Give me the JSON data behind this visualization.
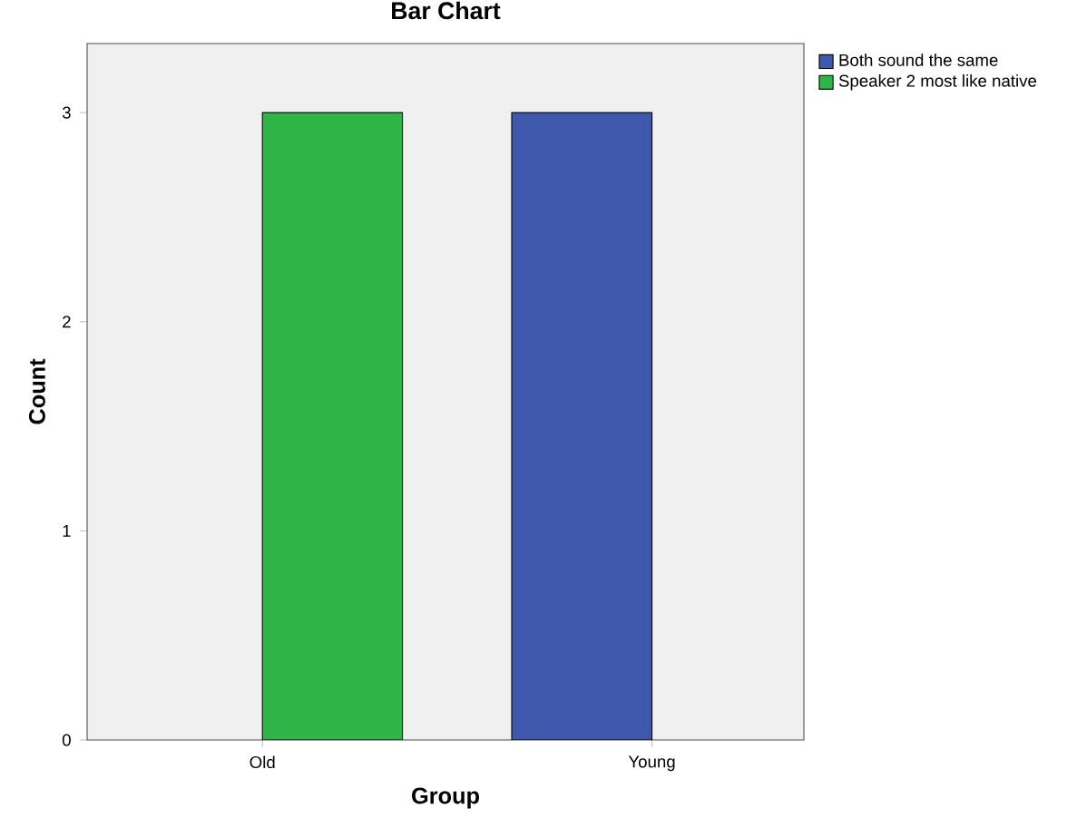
{
  "chart_data": {
    "type": "bar",
    "title": "Bar Chart",
    "xlabel": "Group",
    "ylabel": "Count",
    "categories": [
      "Old",
      "Young"
    ],
    "series": [
      {
        "name": "Both sound the same",
        "color": "#3e58ac",
        "values": [
          null,
          3
        ]
      },
      {
        "name": "Speaker 2 most like native",
        "color": "#2fb547",
        "values": [
          3,
          null
        ]
      }
    ],
    "ylim": [
      0,
      3.33
    ],
    "yticks": [
      0,
      1,
      2,
      3
    ],
    "grid": false,
    "legend": "top right"
  }
}
